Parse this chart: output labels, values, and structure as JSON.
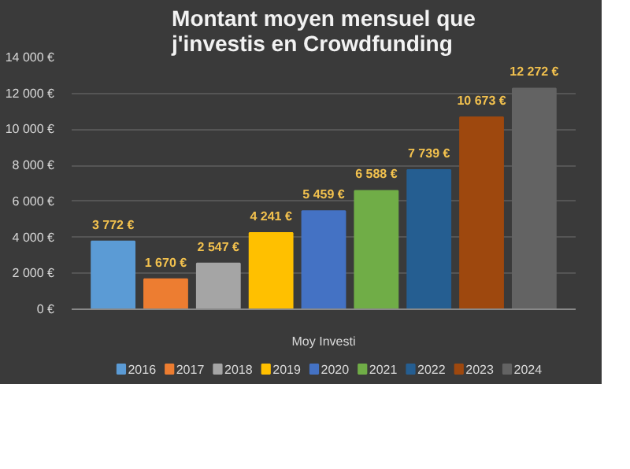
{
  "chart_data": {
    "type": "bar",
    "title": "Montant moyen mensuel que j'investis en Crowdfunding",
    "categories": [
      "Moy Investi"
    ],
    "series": [
      {
        "name": "2016",
        "color": "#5b9bd5",
        "values": [
          3772
        ],
        "value_labels": [
          "3 772 €"
        ]
      },
      {
        "name": "2017",
        "color": "#ed7d31",
        "values": [
          1670
        ],
        "value_labels": [
          "1 670 €"
        ]
      },
      {
        "name": "2018",
        "color": "#a5a5a5",
        "values": [
          2547
        ],
        "value_labels": [
          "2 547 €"
        ]
      },
      {
        "name": "2019",
        "color": "#ffc000",
        "values": [
          4241
        ],
        "value_labels": [
          "4 241 €"
        ]
      },
      {
        "name": "2020",
        "color": "#4472c4",
        "values": [
          5459
        ],
        "value_labels": [
          "5 459 €"
        ]
      },
      {
        "name": "2021",
        "color": "#70ad47",
        "values": [
          6588
        ],
        "value_labels": [
          "6 588 €"
        ]
      },
      {
        "name": "2022",
        "color": "#255e91",
        "values": [
          7739
        ],
        "value_labels": [
          "7 739 €"
        ]
      },
      {
        "name": "2023",
        "color": "#9e480e",
        "values": [
          10673
        ],
        "value_labels": [
          "10 673 €"
        ]
      },
      {
        "name": "2024",
        "color": "#636363",
        "values": [
          12272
        ],
        "value_labels": [
          "12 272 €"
        ]
      }
    ],
    "ylim": [
      0,
      14000
    ],
    "yticks": [
      {
        "value": 0,
        "label": "0 €"
      },
      {
        "value": 2000,
        "label": "2 000 €"
      },
      {
        "value": 4000,
        "label": "4 000 €"
      },
      {
        "value": 6000,
        "label": "6 000 €"
      },
      {
        "value": 8000,
        "label": "8 000 €"
      },
      {
        "value": 10000,
        "label": "10 000 €"
      },
      {
        "value": 12000,
        "label": "12 000 €"
      },
      {
        "value": 14000,
        "label": "14 000 €"
      }
    ],
    "grid": "y",
    "legend": "bottom"
  }
}
